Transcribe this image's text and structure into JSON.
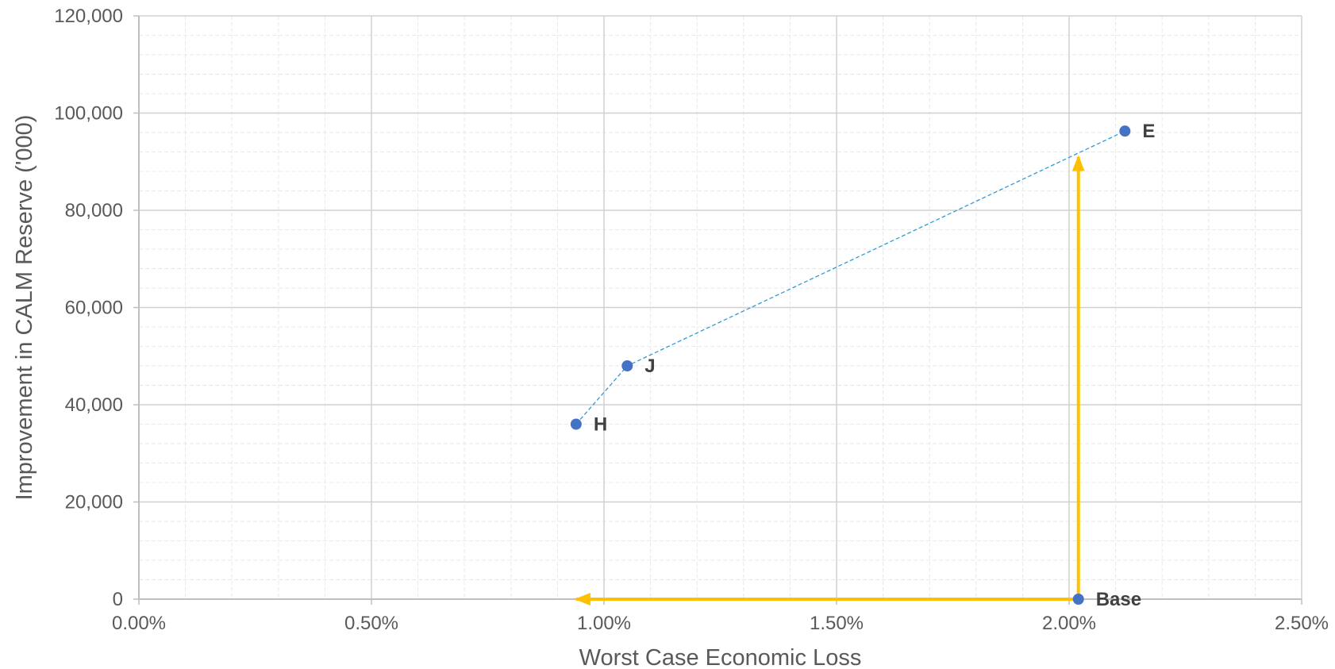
{
  "chart_data": {
    "type": "scatter",
    "title": "",
    "xlabel": "Worst Case Economic Loss",
    "ylabel": "Improvement in CALM Reserve  ('000)",
    "xlim": [
      0,
      0.025
    ],
    "ylim": [
      0,
      120000
    ],
    "x_ticks": [
      0,
      0.005,
      0.01,
      0.015,
      0.02,
      0.025
    ],
    "x_tick_labels": [
      "0.00%",
      "0.50%",
      "1.00%",
      "1.50%",
      "2.00%",
      "2.50%"
    ],
    "y_ticks": [
      0,
      20000,
      40000,
      60000,
      80000,
      100000,
      120000
    ],
    "y_tick_labels": [
      "0",
      "20,000",
      "40,000",
      "60,000",
      "80,000",
      "100,000",
      "120,000"
    ],
    "grid": true,
    "minor_grid": true,
    "legend": "none",
    "series": [
      {
        "points": [
          {
            "label": "Base",
            "x": 0.0202,
            "y": 0
          },
          {
            "label": "H",
            "x": 0.0094,
            "y": 36000
          },
          {
            "label": "J",
            "x": 0.0105,
            "y": 48000
          },
          {
            "label": "E",
            "x": 0.0212,
            "y": 96300
          }
        ],
        "color": "#4472C4"
      }
    ],
    "trend_line": {
      "through": [
        "H",
        "J",
        "E"
      ],
      "style": "dashed",
      "color": "#2E9BD8"
    },
    "arrows": [
      {
        "from": {
          "x": 0.0202,
          "y": 0
        },
        "to": {
          "x": 0.0094,
          "y": 0
        },
        "color": "#FFC000"
      },
      {
        "from": {
          "x": 0.0202,
          "y": 0
        },
        "to": {
          "x": 0.0202,
          "y": 91000
        },
        "color": "#FFC000"
      }
    ],
    "colors": {
      "major_grid": "#D0D0D0",
      "minor_grid": "#E8E8E8",
      "axis": "#BFBFBF",
      "text": "#595959",
      "point_label": "#404040"
    }
  }
}
